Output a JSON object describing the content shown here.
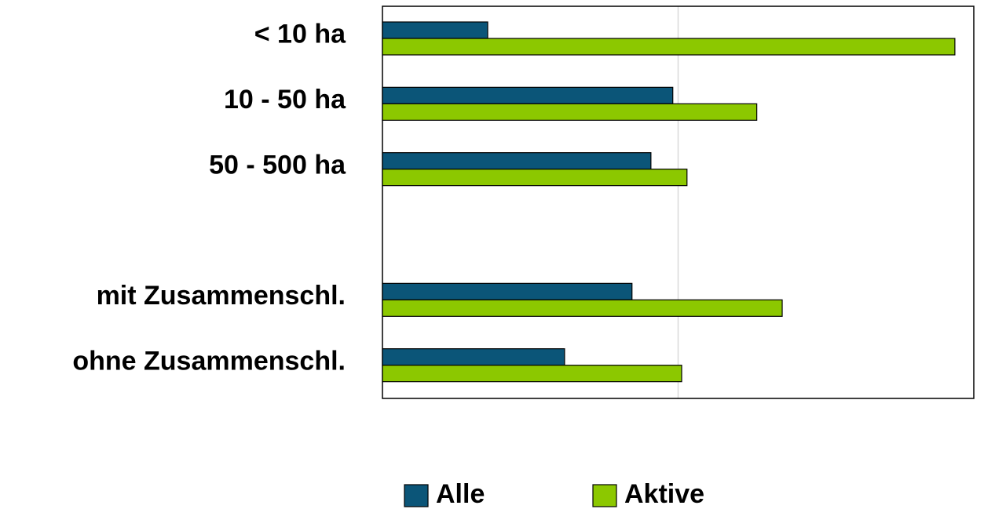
{
  "chart_data": {
    "type": "bar",
    "orientation": "horizontal",
    "categories": [
      "< 10 ha",
      "10 - 50 ha",
      "50 - 500 ha",
      null,
      "mit Zusammenschl.",
      "ohne Zusammenschl."
    ],
    "series": [
      {
        "name": "Alle",
        "color": "#0b5578",
        "values": [
          17.8,
          49.1,
          45.4,
          null,
          42.2,
          30.8
        ]
      },
      {
        "name": "Aktive",
        "color": "#8cc800",
        "values": [
          96.8,
          63.3,
          51.5,
          null,
          67.6,
          50.6
        ]
      }
    ],
    "xlim": [
      0,
      100
    ],
    "gridlines": [
      50
    ],
    "legend": "bottom"
  }
}
